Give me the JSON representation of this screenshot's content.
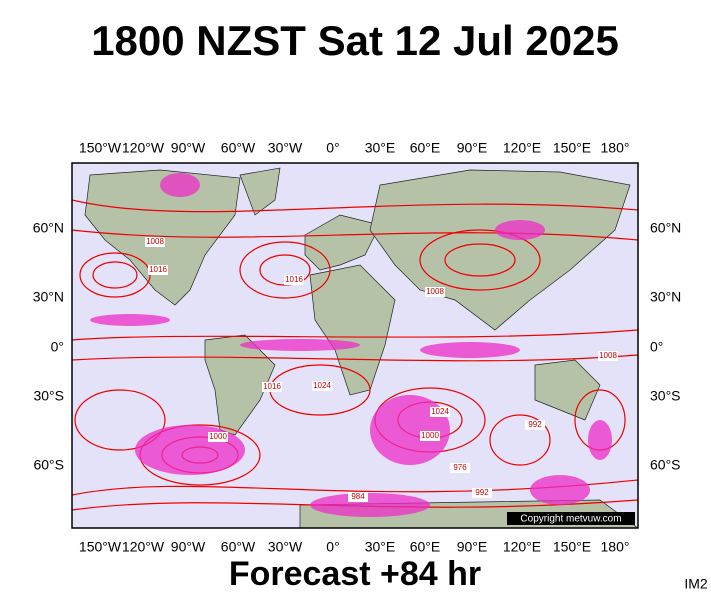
{
  "header": {
    "title": "1800 NZST Sat 12 Jul 2025"
  },
  "map": {
    "lon_labels": [
      "150°W",
      "120°W",
      "90°W",
      "60°W",
      "30°W",
      "0°",
      "30°E",
      "60°E",
      "90°E",
      "120°E",
      "150°E",
      "180°"
    ],
    "lat_labels": [
      "60°N",
      "30°N",
      "0°",
      "30°S",
      "60°S"
    ],
    "isobar_labels": [
      "1008",
      "1016",
      "1016",
      "1024",
      "1024",
      "1008",
      "1000",
      "1000",
      "992",
      "976",
      "984",
      "992",
      "1008",
      "1016"
    ],
    "copyright": "Copyright metvuw.com"
  },
  "footer": {
    "forecast": "Forecast +84 hr",
    "code": "IM2"
  }
}
